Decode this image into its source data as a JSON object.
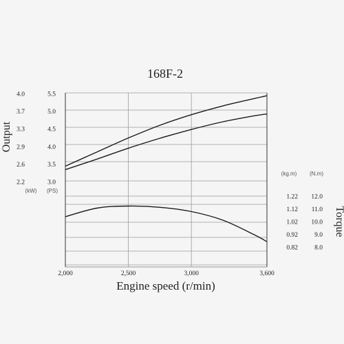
{
  "chart_data": {
    "type": "line",
    "title": "168F-2",
    "xlabel": "Engine speed (r/min)",
    "x_ticks": [
      "2,000",
      "2,500",
      "3,000",
      "3,600"
    ],
    "xlim": [
      2000,
      3600
    ],
    "grid": true,
    "output_axis": {
      "label": "Output",
      "kw_unit": "(kW)",
      "ps_unit": "(PS)",
      "kw_ticks": [
        "4.0",
        "3.7",
        "3.3",
        "2.9",
        "2.6",
        "2.2"
      ],
      "ps_ticks": [
        "5.5",
        "5.0",
        "4.5",
        "4.0",
        "3.5",
        "3.0"
      ],
      "ps_range": [
        3.0,
        5.5
      ]
    },
    "torque_axis": {
      "label": "Torque",
      "kgm_unit": "(kg.m)",
      "nm_unit": "(N.m)",
      "kgm_ticks": [
        "1.22",
        "1.12",
        "1.02",
        "0.92",
        "0.82"
      ],
      "nm_ticks": [
        "12.0",
        "11.0",
        "10.0",
        "9.0",
        "8.0"
      ],
      "nm_range": [
        8.0,
        12.0
      ]
    },
    "series": [
      {
        "axis": "output",
        "x": [
          2000,
          2250,
          2500,
          2750,
          3000,
          3250,
          3500,
          3600
        ],
        "y_ps": [
          3.42,
          3.82,
          4.22,
          4.58,
          4.88,
          5.13,
          5.34,
          5.42
        ]
      },
      {
        "axis": "output",
        "x": [
          2000,
          2250,
          2500,
          2750,
          3000,
          3250,
          3500,
          3600
        ],
        "y_ps": [
          3.32,
          3.62,
          3.93,
          4.21,
          4.46,
          4.68,
          4.85,
          4.9
        ]
      },
      {
        "axis": "torque",
        "x": [
          2000,
          2250,
          2500,
          2750,
          3000,
          3250,
          3500,
          3600
        ],
        "y_nm": [
          10.8,
          11.3,
          11.42,
          11.35,
          11.1,
          10.6,
          9.75,
          9.35
        ]
      }
    ]
  }
}
